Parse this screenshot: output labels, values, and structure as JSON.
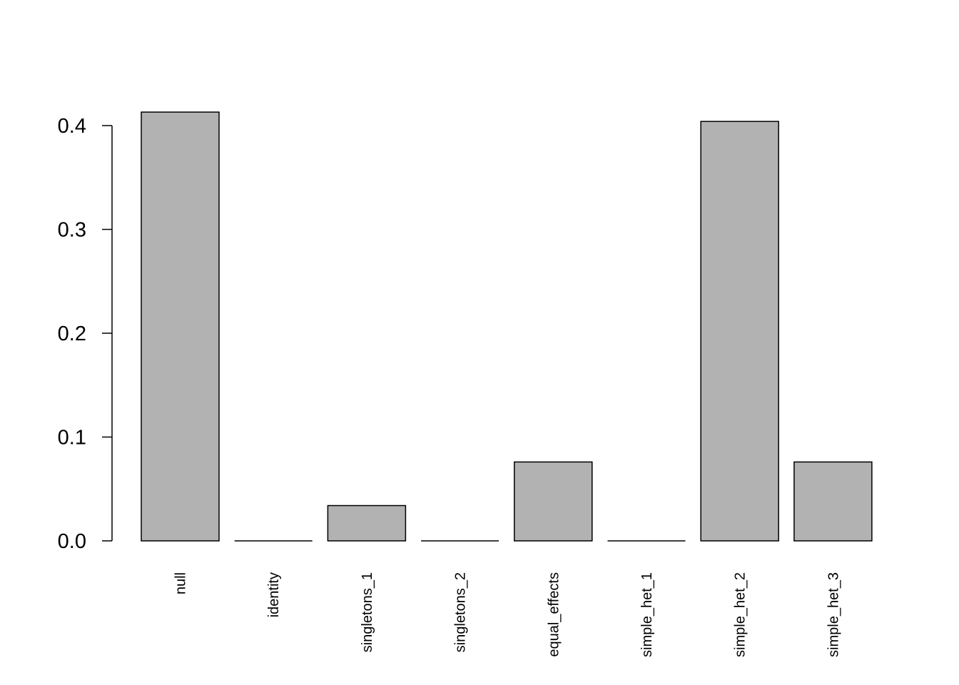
{
  "chart_data": {
    "type": "bar",
    "title": "",
    "xlabel": "",
    "ylabel": "",
    "categories": [
      "null",
      "identity",
      "singletons_1",
      "singletons_2",
      "equal_effects",
      "simple_het_1",
      "simple_het_2",
      "simple_het_3"
    ],
    "values": [
      0.413,
      0.0,
      0.034,
      0.0,
      0.076,
      0.0,
      0.404,
      0.076
    ],
    "ylim": [
      0,
      0.4
    ],
    "yticks": [
      "0.0",
      "0.1",
      "0.2",
      "0.3",
      "0.4"
    ],
    "grid": false,
    "bar_color": "#b2b2b2",
    "bar_edge_color": "#000000"
  }
}
